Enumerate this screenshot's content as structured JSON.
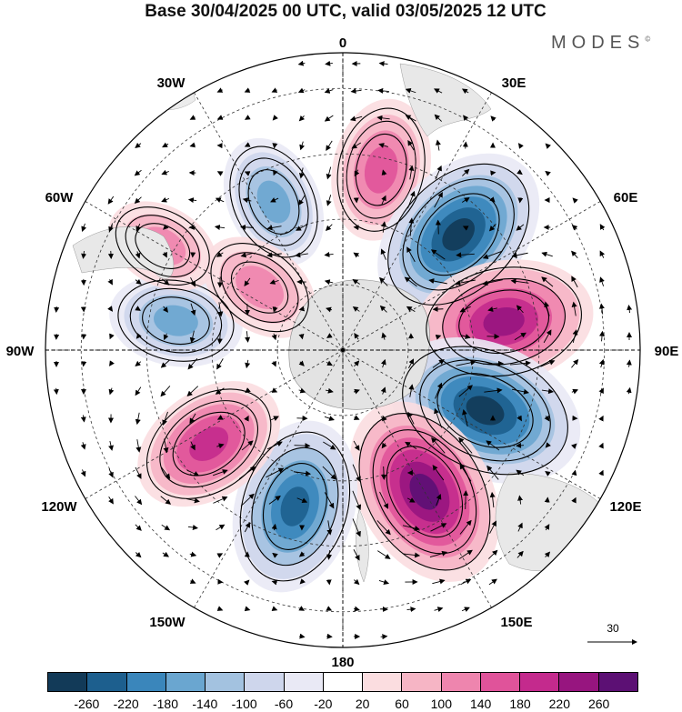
{
  "title": "Base 30/04/2025 00 UTC, valid 03/05/2025 12 UTC",
  "brand": "MODES",
  "brand_mark": "©",
  "longitude_labels": {
    "top": "0",
    "bottom": "180",
    "left": "90W",
    "right": "90E",
    "nw1": "30W",
    "nw2": "60W",
    "ne1": "30E",
    "ne2": "60E",
    "sw1": "120W",
    "sw2": "150W",
    "se1": "120E",
    "se2": "150E"
  },
  "reference_vector": "30",
  "colorbar": {
    "colors": [
      "#123a58",
      "#1d5f8e",
      "#3a86bb",
      "#6aa6d0",
      "#a3c2e0",
      "#ced6ec",
      "#e9e9f5",
      "#ffffff",
      "#fbdde0",
      "#f6b5c5",
      "#ee85ae",
      "#e0539a",
      "#c42a8d",
      "#97157f",
      "#5c1074"
    ],
    "tick_labels": [
      "-260",
      "-220",
      "-180",
      "-140",
      "-100",
      "-60",
      "-20",
      "20",
      "60",
      "100",
      "140",
      "180",
      "220",
      "260"
    ]
  },
  "anomaly_centers": [
    {
      "lon": -25,
      "lat_frac": 0.55,
      "value": -110,
      "color": "#6aa6d0"
    },
    {
      "lon": 12,
      "lat_frac": 0.62,
      "value": 130,
      "color": "#ee85ae"
    },
    {
      "lon": 45,
      "lat_frac": 0.55,
      "value": -230,
      "color": "#1d5f8e"
    },
    {
      "lon": 80,
      "lat_frac": 0.55,
      "value": 210,
      "color": "#c42a8d"
    },
    {
      "lon": 113,
      "lat_frac": 0.52,
      "value": -250,
      "color": "#123a58"
    },
    {
      "lon": 150,
      "lat_frac": 0.55,
      "value": 240,
      "color": "#97157f"
    },
    {
      "lon": -163,
      "lat_frac": 0.55,
      "value": -200,
      "color": "#3a86bb"
    },
    {
      "lon": -125,
      "lat_frac": 0.55,
      "value": 160,
      "color": "#e0539a"
    },
    {
      "lon": -80,
      "lat_frac": 0.57,
      "value": -110,
      "color": "#6aa6d0"
    },
    {
      "lon": -53,
      "lat_frac": 0.35,
      "value": 90,
      "color": "#f6b5c5"
    },
    {
      "lon": -60,
      "lat_frac": 0.7,
      "value": 70,
      "color": "#f6b5c5"
    }
  ]
}
